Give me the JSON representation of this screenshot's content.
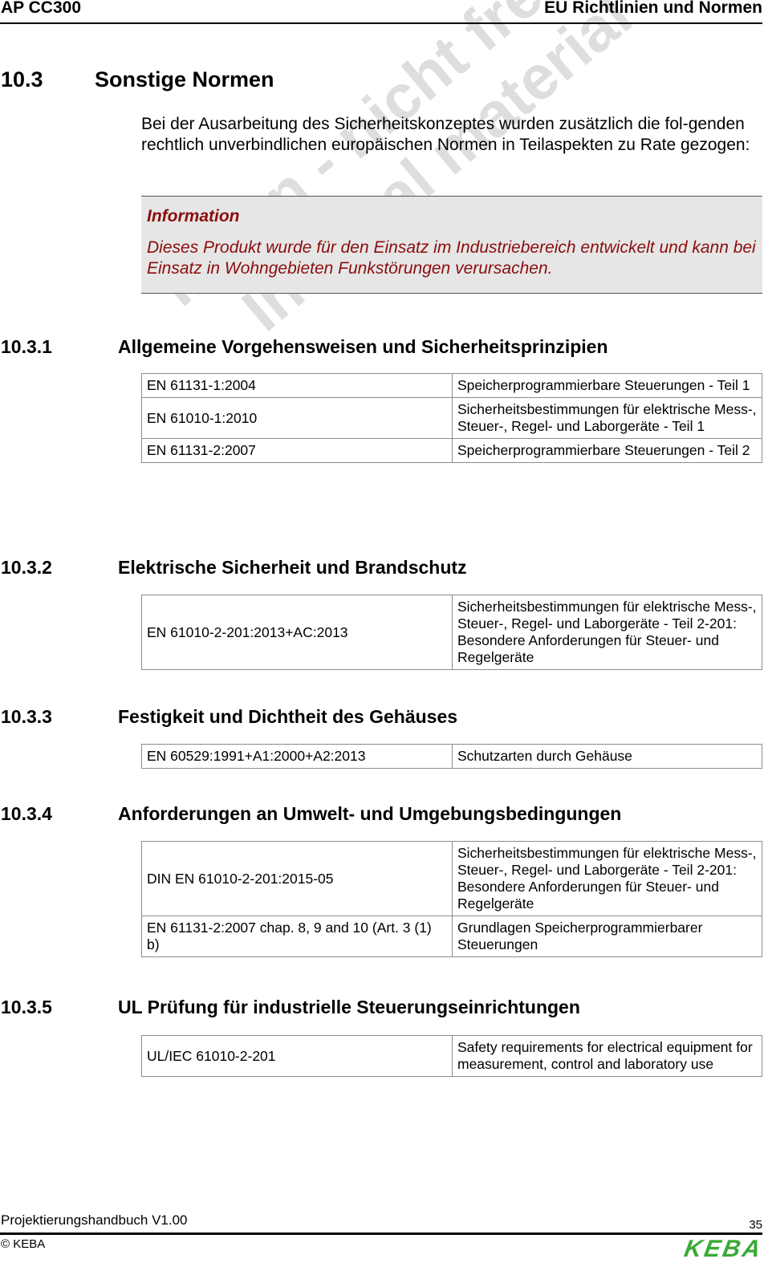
{
  "header": {
    "product": "AP CC300",
    "chapter": "EU Richtlinien und Normen"
  },
  "section": {
    "number": "10.3",
    "title": "Sonstige Normen"
  },
  "intro": "Bei der Ausarbeitung des Sicherheitskonzeptes wurden zusätzlich die fol-genden rechtlich unverbindlichen europäischen Normen in Teilaspekten zu Rate gezogen:",
  "info": {
    "title": "Information",
    "text": "Dieses Produkt wurde für den Einsatz im Industriebereich entwickelt und kann bei Einsatz in Wohngebieten Funkstörungen verursachen."
  },
  "subsections": [
    {
      "number": "10.3.1",
      "title": "Allgemeine Vorgehensweisen und Sicherheitsprinzipien",
      "rows": [
        [
          "EN 61131-1:2004",
          "Speicherprogrammierbare Steuerungen - Teil 1"
        ],
        [
          "EN 61010-1:2010",
          "Sicherheitsbestimmungen für elektrische Mess-, Steuer-, Regel- und Laborgeräte - Teil 1"
        ],
        [
          "EN 61131-2:2007",
          "Speicherprogrammierbare Steuerungen - Teil 2"
        ]
      ]
    },
    {
      "number": "10.3.2",
      "title": "Elektrische Sicherheit und Brandschutz",
      "rows": [
        [
          "EN 61010-2-201:2013+AC:2013",
          "Sicherheitsbestimmungen für elektrische Mess-, Steuer-, Regel- und Laborgeräte - Teil 2-201: Besondere Anforderungen für Steuer- und Regelgeräte"
        ]
      ]
    },
    {
      "number": "10.3.3",
      "title": "Festigkeit und Dichtheit des Gehäuses",
      "rows": [
        [
          "EN 60529:1991+A1:2000+A2:2013",
          "Schutzarten durch Gehäuse"
        ]
      ]
    },
    {
      "number": "10.3.4",
      "title": "Anforderungen an Umwelt- und Umgebungsbedingungen",
      "rows": [
        [
          "DIN EN 61010-2-201:2015-05",
          "Sicherheitsbestimmungen für elektrische Mess-, Steuer-, Regel- und Laborgeräte - Teil 2-201: Besondere Anforderungen für Steuer- und Regelgeräte"
        ],
        [
          "EN 61131-2:2007 chap. 8, 9 and 10 (Art. 3 (1) b)",
          "Grundlagen Speicherprogrammierbarer Steuerungen"
        ]
      ]
    },
    {
      "number": "10.3.5",
      "title": "UL Prüfung für industrielle Steuerungseinrichtungen",
      "rows": [
        [
          "UL/IEC 61010-2-201",
          "Safety requirements for electrical equipment for measurement, control and laboratory use"
        ]
      ]
    }
  ],
  "watermark": [
    "Intern - nicht freigegeben",
    "Internal material - not released"
  ],
  "footer": {
    "document": "Projektierungshandbuch V1.00",
    "page": "35",
    "copyright": "© KEBA",
    "logo": "KEBA"
  },
  "colors": {
    "info_text": "#8b0d0d",
    "info_bg": "#e6e6e6",
    "logo": "#3aaa35"
  }
}
